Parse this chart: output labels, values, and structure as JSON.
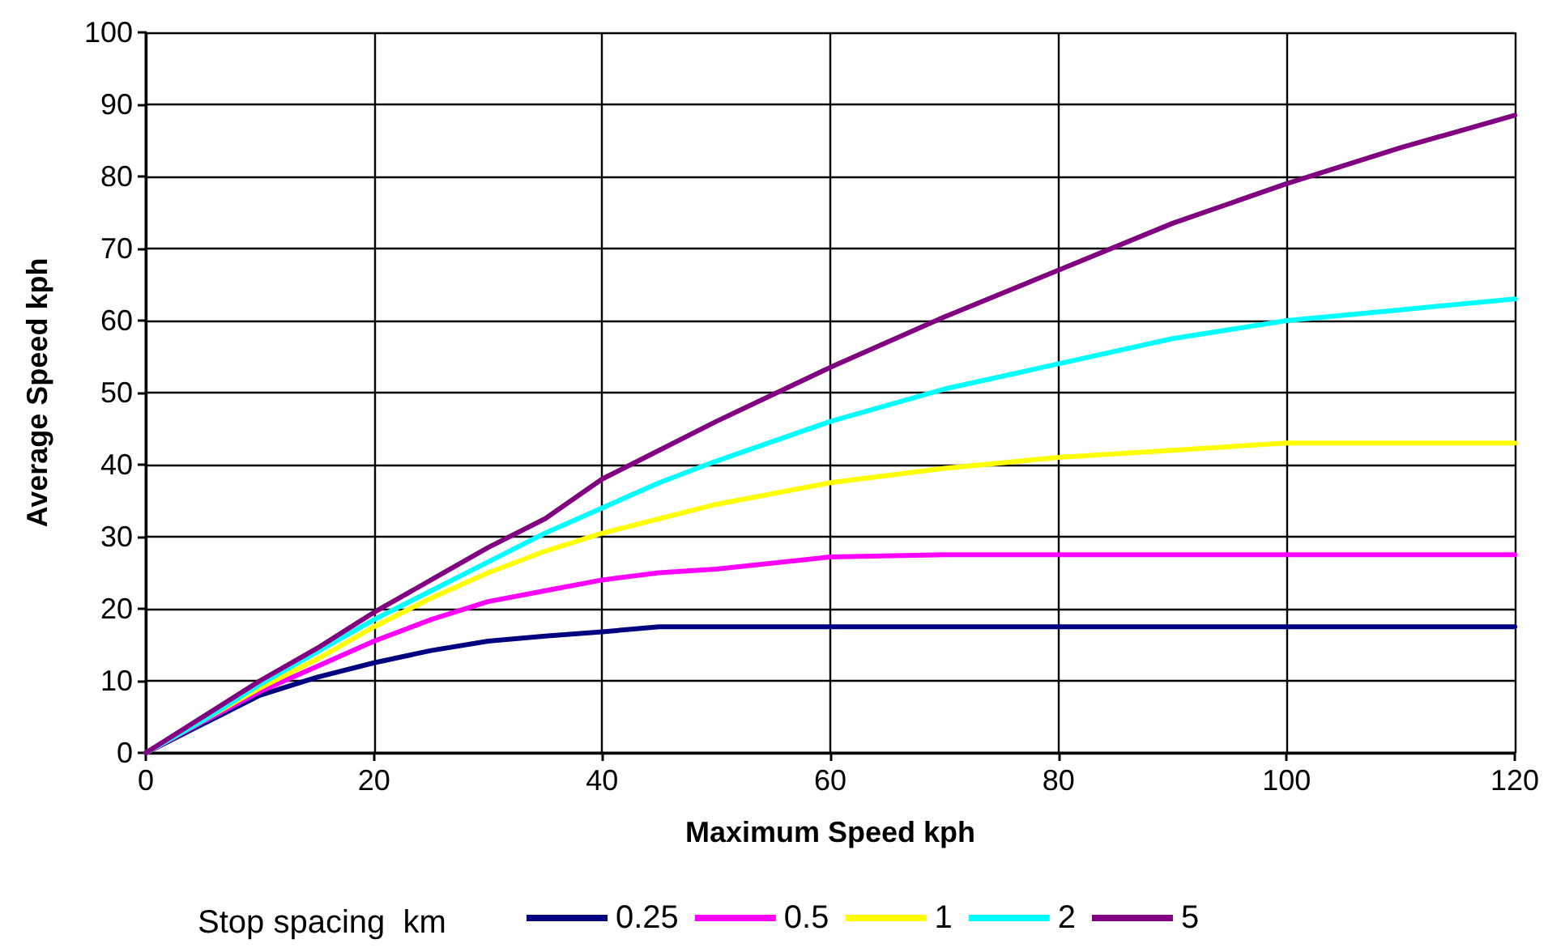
{
  "chart_data": {
    "type": "line",
    "xlabel": "Maximum Speed kph",
    "ylabel": "Average Speed kph",
    "legend_title": "Stop spacing  km",
    "x": [
      0,
      5,
      10,
      15,
      20,
      25,
      30,
      35,
      40,
      45,
      50,
      60,
      70,
      80,
      90,
      100,
      110,
      120
    ],
    "xlim": [
      0,
      120
    ],
    "xticks": [
      0,
      20,
      40,
      60,
      80,
      100,
      120
    ],
    "ylim": [
      0,
      100
    ],
    "yticks": [
      0,
      10,
      20,
      30,
      40,
      50,
      60,
      70,
      80,
      90,
      100
    ],
    "grid": true,
    "legend": "bottom",
    "marker": "none",
    "line_style": "solid",
    "series": [
      {
        "name": "0.25",
        "color": "#000080",
        "values": [
          0,
          4,
          8,
          10.5,
          12.5,
          14.2,
          15.5,
          16.2,
          16.8,
          17.5,
          17.5,
          17.5,
          17.5,
          17.5,
          17.5,
          17.5,
          17.5,
          17.5
        ]
      },
      {
        "name": "0.5",
        "color": "#ff00ff",
        "values": [
          0,
          4.3,
          8.5,
          12,
          15.5,
          18.5,
          21,
          22.5,
          24,
          25,
          25.5,
          27.2,
          27.5,
          27.5,
          27.5,
          27.5,
          27.5,
          27.5
        ]
      },
      {
        "name": "1",
        "color": "#ffff00",
        "values": [
          0,
          null,
          9,
          13,
          17.5,
          21.5,
          25,
          28,
          30.5,
          32.5,
          34.5,
          37.5,
          39.5,
          41,
          42,
          43,
          43,
          43
        ]
      },
      {
        "name": "2",
        "color": "#00ffff",
        "values": [
          0,
          4.5,
          9.5,
          14,
          18.5,
          22.5,
          26.5,
          30.5,
          34,
          37.5,
          40.5,
          46,
          50.5,
          54,
          57.5,
          60,
          61.5,
          63
        ]
      },
      {
        "name": "5",
        "color": "#800080",
        "values": [
          0,
          5,
          10,
          14.5,
          19.5,
          24,
          28.5,
          32.5,
          38,
          42,
          46,
          53.5,
          60.5,
          67,
          73.5,
          79,
          84,
          88.5
        ]
      }
    ]
  }
}
